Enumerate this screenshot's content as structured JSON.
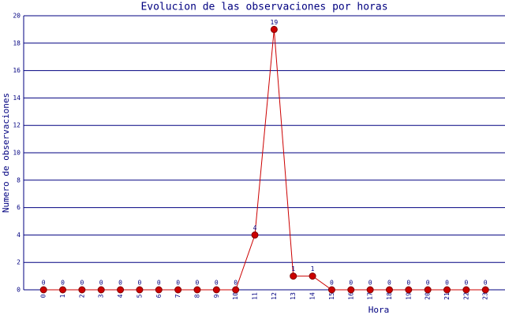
{
  "chart_data": {
    "type": "line",
    "title": "Evolucion de las observaciones por horas",
    "x_label": "Hora",
    "y_label": "Numero de observaciones",
    "categories": [
      "0",
      "1",
      "2",
      "3",
      "4",
      "5",
      "6",
      "7",
      "8",
      "9",
      "10",
      "11",
      "12",
      "13",
      "14",
      "15",
      "16",
      "17",
      "18",
      "19",
      "20",
      "21",
      "22",
      "23"
    ],
    "values": [
      0,
      0,
      0,
      0,
      0,
      0,
      0,
      0,
      0,
      0,
      0,
      4,
      19,
      1,
      1,
      0,
      0,
      0,
      0,
      0,
      0,
      0,
      0,
      0
    ],
    "color": "#cc0000",
    "ylim": [
      0,
      20
    ],
    "yticks": [
      0,
      2,
      4,
      6,
      8,
      10,
      12,
      14,
      16,
      18,
      20
    ],
    "grid": true
  }
}
